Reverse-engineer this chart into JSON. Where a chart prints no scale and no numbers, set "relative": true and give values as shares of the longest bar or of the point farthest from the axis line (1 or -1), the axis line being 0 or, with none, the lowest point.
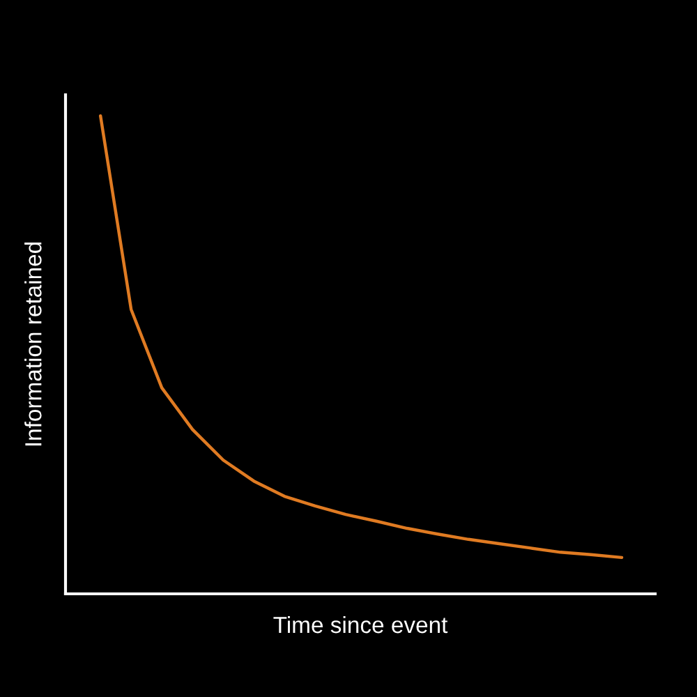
{
  "chart_data": {
    "type": "line",
    "relative": true,
    "xlabel": "Time since event",
    "ylabel": "Information retained",
    "categories": [
      null,
      null,
      null,
      null,
      null,
      null,
      null,
      null,
      null,
      null,
      null,
      null,
      null,
      null,
      null,
      null,
      null,
      null
    ],
    "series": [
      {
        "color": "#e07b22",
        "values": [
          1.0,
          0.595,
          0.431,
          0.344,
          0.28,
          0.236,
          0.204,
          0.184,
          0.166,
          0.152,
          0.137,
          0.125,
          0.114,
          0.105,
          0.096,
          0.087,
          0.082,
          0.076
        ]
      }
    ],
    "grid": false,
    "legend": false,
    "marker": "none",
    "line_style": "solid"
  }
}
